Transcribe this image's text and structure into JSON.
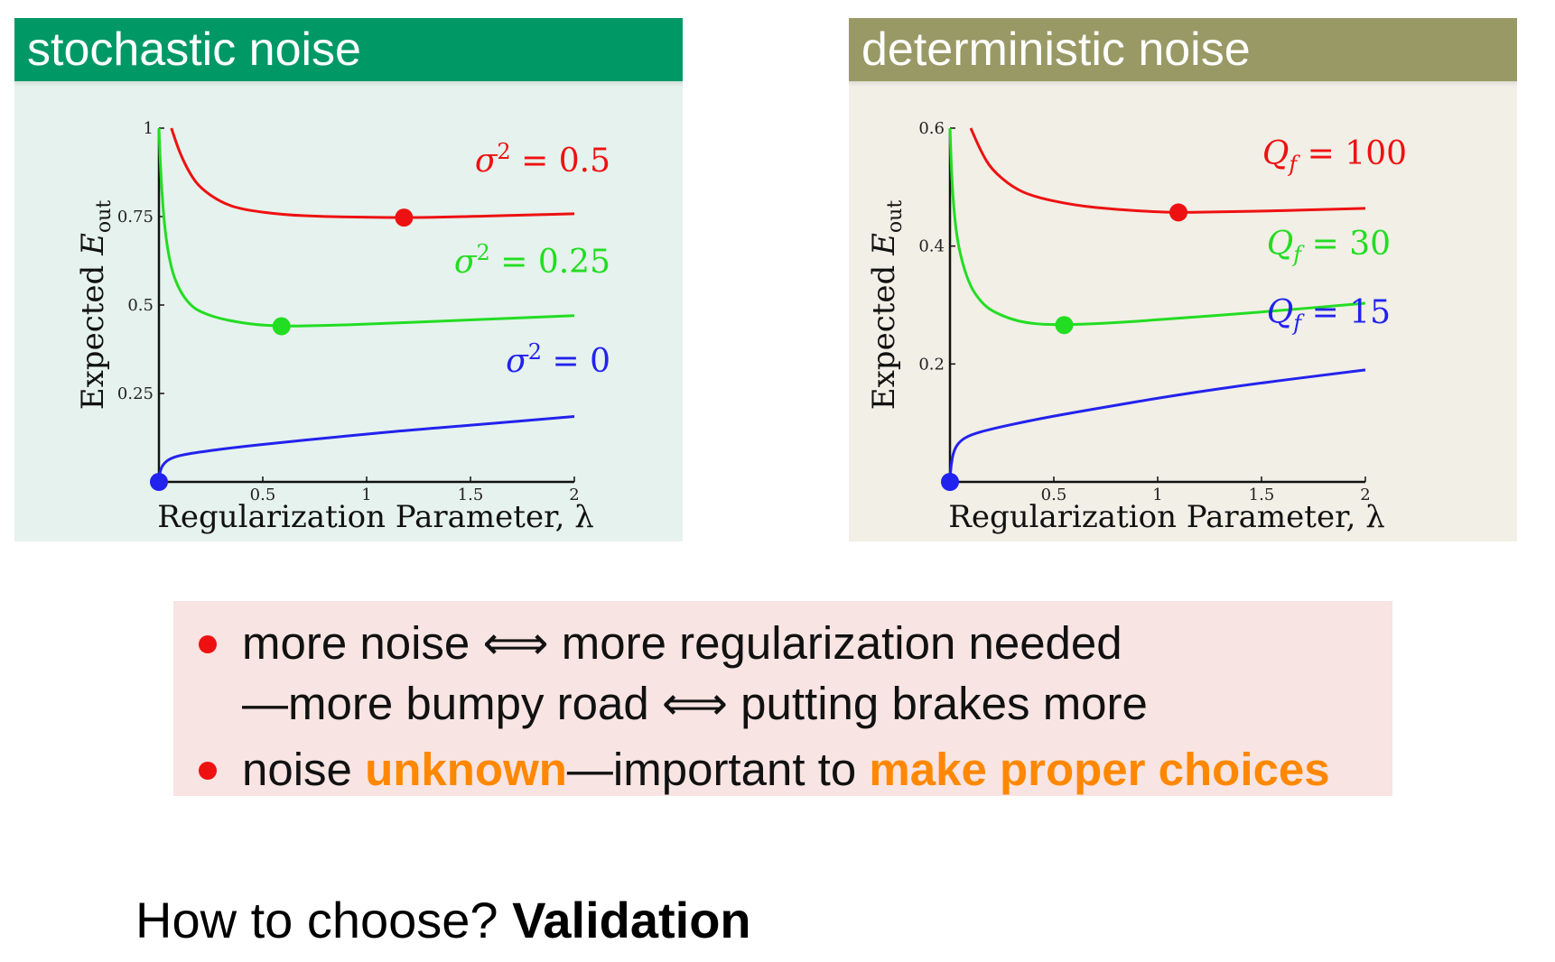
{
  "panels": [
    {
      "title": "stochastic noise",
      "header_color": "#009966"
    },
    {
      "title": "deterministic noise",
      "header_color": "#999966"
    }
  ],
  "chart_data": [
    {
      "type": "line",
      "title": "stochastic noise",
      "xlabel": "Regularization Parameter, λ",
      "ylabel": "Expected E_out",
      "ylabel_main": "Expected ",
      "ylabel_var": "E",
      "ylabel_sub": "out",
      "xlim": [
        0,
        2
      ],
      "ylim": [
        0,
        1
      ],
      "xticks": [
        "0.5",
        "1",
        "1.5",
        "2"
      ],
      "xtick_values": [
        0.5,
        1,
        1.5,
        2
      ],
      "yticks": [
        "0.25",
        "0.5",
        "0.75",
        "1"
      ],
      "ytick_values": [
        0.25,
        0.5,
        0.75,
        1
      ],
      "grid": false,
      "series": [
        {
          "name": "σ² = 0.5",
          "label_sym": "σ",
          "label_sup": "2",
          "label_rest": " = 0.5",
          "color": "#ee1111",
          "x": [
            0.06,
            0.1,
            0.15,
            0.2,
            0.3,
            0.4,
            0.6,
            0.8,
            1.0,
            1.2,
            1.5,
            2.0
          ],
          "y": [
            1.0,
            0.93,
            0.87,
            0.83,
            0.79,
            0.77,
            0.755,
            0.75,
            0.748,
            0.747,
            0.75,
            0.758
          ],
          "optimum": [
            1.18,
            0.747
          ]
        },
        {
          "name": "σ² = 0.25",
          "label_sym": "σ",
          "label_sup": "2",
          "label_rest": " = 0.25",
          "color": "#22dd22",
          "x": [
            0.0,
            0.01,
            0.03,
            0.06,
            0.1,
            0.15,
            0.2,
            0.3,
            0.45,
            0.59,
            0.8,
            1.0,
            1.5,
            2.0
          ],
          "y": [
            1.0,
            0.85,
            0.7,
            0.6,
            0.54,
            0.5,
            0.48,
            0.46,
            0.445,
            0.44,
            0.442,
            0.446,
            0.458,
            0.47
          ],
          "optimum": [
            0.59,
            0.44
          ]
        },
        {
          "name": "σ² = 0",
          "label_sym": "σ",
          "label_sup": "2",
          "label_rest": " = 0",
          "color": "#2222ee",
          "x": [
            0.0,
            0.005,
            0.02,
            0.05,
            0.1,
            0.2,
            0.4,
            0.6,
            0.8,
            1.0,
            1.2,
            1.5,
            2.0
          ],
          "y": [
            0.0,
            0.03,
            0.05,
            0.065,
            0.075,
            0.085,
            0.1,
            0.112,
            0.124,
            0.135,
            0.146,
            0.16,
            0.185
          ],
          "optimum": [
            0.0,
            0.0
          ]
        }
      ]
    },
    {
      "type": "line",
      "title": "deterministic noise",
      "xlabel": "Regularization Parameter, λ",
      "ylabel": "Expected E_out",
      "ylabel_main": "Expected ",
      "ylabel_var": "E",
      "ylabel_sub": "out",
      "xlim": [
        0,
        2
      ],
      "ylim": [
        0,
        0.6
      ],
      "xticks": [
        "0.5",
        "1",
        "1.5",
        "2"
      ],
      "xtick_values": [
        0.5,
        1,
        1.5,
        2
      ],
      "yticks": [
        "0.2",
        "0.4",
        "0.6"
      ],
      "ytick_values": [
        0.2,
        0.4,
        0.6
      ],
      "grid": false,
      "series": [
        {
          "name": "Q_f = 100",
          "label_sym": "Q",
          "label_sub": "f",
          "label_rest": " = 100",
          "color": "#ee1111",
          "x": [
            0.1,
            0.15,
            0.2,
            0.3,
            0.4,
            0.6,
            0.8,
            1.0,
            1.1,
            1.3,
            1.6,
            2.0
          ],
          "y": [
            0.6,
            0.56,
            0.53,
            0.5,
            0.484,
            0.469,
            0.462,
            0.458,
            0.457,
            0.458,
            0.46,
            0.464
          ],
          "optimum": [
            1.1,
            0.457
          ]
        },
        {
          "name": "Q_f = 30",
          "label_sym": "Q",
          "label_sub": "f",
          "label_rest": " = 30",
          "color": "#22dd22",
          "x": [
            0.0,
            0.01,
            0.03,
            0.06,
            0.1,
            0.15,
            0.2,
            0.3,
            0.4,
            0.55,
            0.8,
            1.0,
            1.5,
            2.0
          ],
          "y": [
            0.6,
            0.5,
            0.42,
            0.37,
            0.33,
            0.305,
            0.29,
            0.275,
            0.268,
            0.266,
            0.27,
            0.275,
            0.288,
            0.303
          ],
          "optimum": [
            0.55,
            0.266
          ]
        },
        {
          "name": "Q_f = 15",
          "label_sym": "Q",
          "label_sub": "f",
          "label_rest": " = 15",
          "color": "#2222ee",
          "x": [
            0.0,
            0.005,
            0.02,
            0.05,
            0.1,
            0.2,
            0.4,
            0.6,
            0.8,
            1.0,
            1.2,
            1.5,
            2.0
          ],
          "y": [
            0.0,
            0.03,
            0.055,
            0.07,
            0.08,
            0.09,
            0.105,
            0.118,
            0.13,
            0.142,
            0.153,
            0.168,
            0.19
          ],
          "optimum": [
            0.0,
            0.0
          ]
        }
      ]
    }
  ],
  "summary": {
    "line1_a": "more noise ",
    "line1_arrow": "⟺",
    "line1_b": " more regularization needed",
    "line2_a": "—more bumpy road ",
    "line2_arrow": "⟺",
    "line2_b": " putting brakes more",
    "line3_a": "noise ",
    "line3_hl1": "unknown",
    "line3_b": "—important to ",
    "line3_hl2": "make proper choices",
    "highlight_color": "#ff8800",
    "bullet_color": "#ee1111"
  },
  "footer": {
    "question": "How to choose? ",
    "answer": "Validation"
  }
}
